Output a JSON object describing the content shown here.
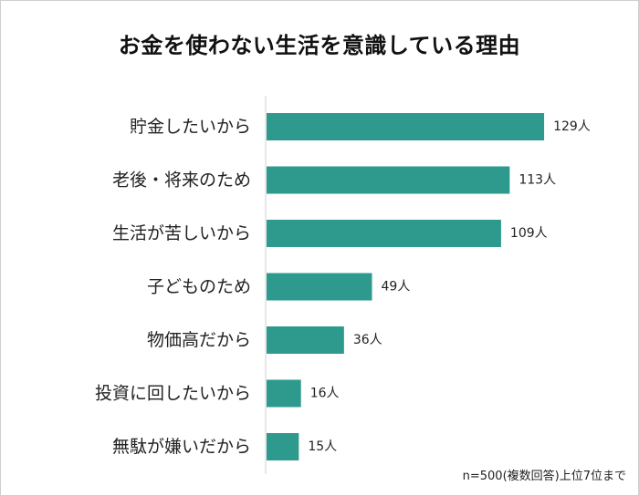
{
  "title": "お金を使わない生活を意識している理由",
  "note": "n=500(複数回答)上位7位まで",
  "colors": {
    "bar": "#2e9a8e",
    "axis": "#d0d0d0",
    "text": "#222222"
  },
  "chart_data": {
    "type": "bar",
    "orientation": "horizontal",
    "categories": [
      "貯金したいから",
      "老後・将来のため",
      "生活が苦しいから",
      "子どものため",
      "物価高だから",
      "投資に回したいから",
      "無駄が嫌いだから"
    ],
    "values": [
      129,
      113,
      109,
      49,
      36,
      16,
      15
    ],
    "value_labels": [
      "129人",
      "113人",
      "109人",
      "49人",
      "36人",
      "16人",
      "15人"
    ],
    "unit": "人",
    "xlim": [
      0,
      140
    ],
    "grid": false,
    "legend": "none"
  }
}
